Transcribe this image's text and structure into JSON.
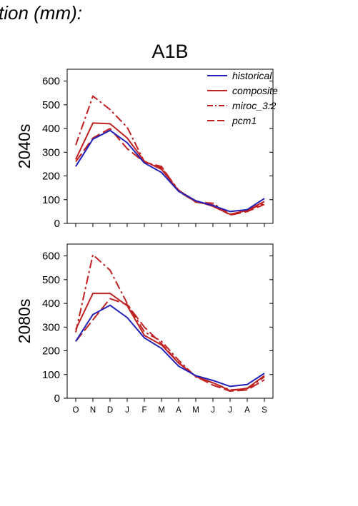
{
  "header": {
    "text": "tion (mm):"
  },
  "scenario": "A1B",
  "colors": {
    "historical": "#2222bb",
    "projection": "#c02020"
  },
  "legend": [
    {
      "key": "historical",
      "label": "historical",
      "dash": "solid",
      "color": "#2222bb"
    },
    {
      "key": "composite",
      "label": "composite",
      "dash": "solid",
      "color": "#c02020"
    },
    {
      "key": "miroc_3.2",
      "label": "miroc_3.2",
      "dash": "dashdot",
      "color": "#c02020"
    },
    {
      "key": "pcm1",
      "label": "pcm1",
      "dash": "dashed",
      "color": "#c02020"
    }
  ],
  "chart_data": [
    {
      "type": "line",
      "title": "A1B",
      "row_label": "2040s",
      "categories": [
        "O",
        "N",
        "D",
        "J",
        "F",
        "M",
        "A",
        "M",
        "J",
        "J",
        "A",
        "S"
      ],
      "ylim": [
        0,
        650
      ],
      "yticks": [
        0,
        100,
        200,
        300,
        400,
        500,
        600
      ],
      "series": [
        {
          "name": "historical",
          "values": [
            240,
            355,
            392,
            340,
            255,
            215,
            135,
            95,
            75,
            50,
            58,
            105
          ]
        },
        {
          "name": "composite",
          "values": [
            270,
            423,
            420,
            360,
            262,
            228,
            138,
            95,
            72,
            38,
            55,
            92
          ]
        },
        {
          "name": "miroc_3.2",
          "values": [
            330,
            537,
            480,
            405,
            260,
            235,
            140,
            90,
            85,
            38,
            55,
            85
          ]
        },
        {
          "name": "pcm1",
          "values": [
            260,
            360,
            400,
            315,
            258,
            240,
            135,
            90,
            78,
            35,
            50,
            80
          ]
        }
      ]
    },
    {
      "type": "line",
      "title": "",
      "row_label": "2080s",
      "categories": [
        "O",
        "N",
        "D",
        "J",
        "F",
        "M",
        "A",
        "M",
        "J",
        "J",
        "A",
        "S"
      ],
      "ylim": [
        0,
        650
      ],
      "yticks": [
        0,
        100,
        200,
        300,
        400,
        500,
        600
      ],
      "series": [
        {
          "name": "historical",
          "values": [
            240,
            353,
            392,
            340,
            255,
            210,
            135,
            95,
            75,
            50,
            58,
            105
          ]
        },
        {
          "name": "composite",
          "values": [
            290,
            442,
            442,
            390,
            265,
            225,
            148,
            92,
            65,
            32,
            42,
            95
          ]
        },
        {
          "name": "miroc_3.2",
          "values": [
            278,
            605,
            540,
            400,
            280,
            240,
            160,
            90,
            65,
            35,
            40,
            90
          ]
        },
        {
          "name": "pcm1",
          "values": [
            240,
            330,
            420,
            395,
            300,
            230,
            150,
            92,
            55,
            30,
            35,
            78
          ]
        }
      ]
    }
  ]
}
